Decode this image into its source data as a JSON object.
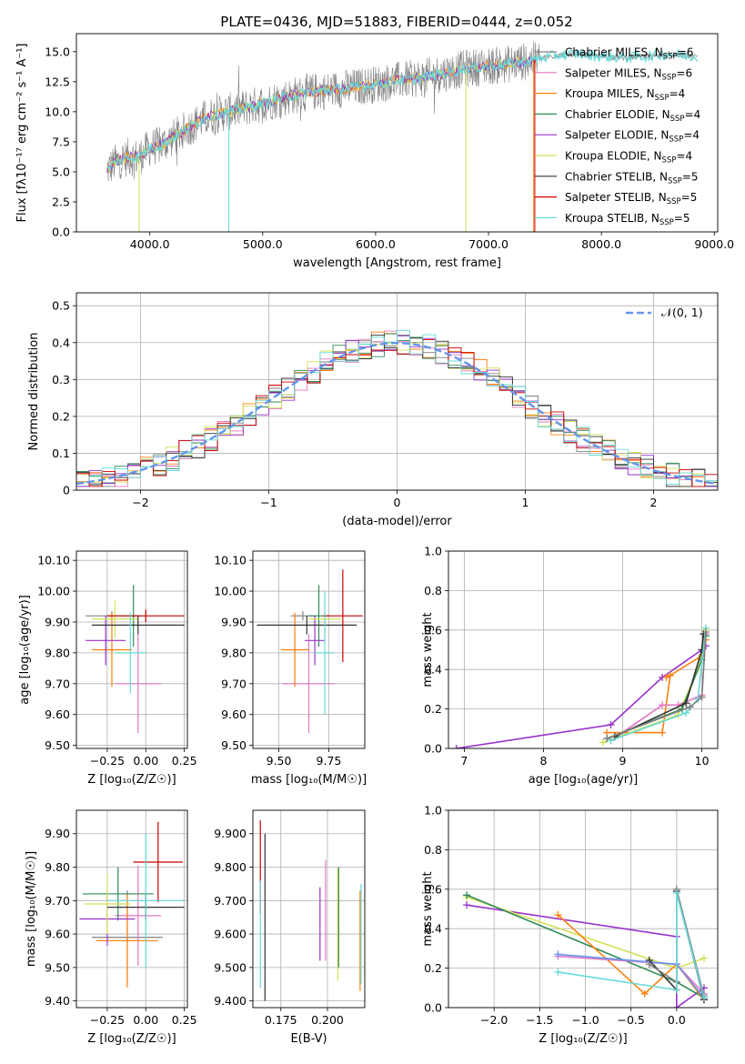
{
  "figure": {
    "title": "PLATE=0436, MJD=51883, FIBERID=0444, z=0.052",
    "colors": {
      "chabrier_miles": "#808080",
      "salpeter_miles": "#e377c2",
      "kroupa_miles": "#ff7f0e",
      "chabrier_elodie": "#2e8b57",
      "salpeter_elodie": "#9932cc",
      "kroupa_elodie": "#d4e157",
      "chabrier_stelib": "#333333",
      "salpeter_stelib": "#cc0000",
      "kroupa_stelib": "#66d9d9",
      "normal_curve": "#6495ed",
      "grid": "#b0b0b0"
    }
  },
  "chart_data": [
    {
      "id": "spectrum",
      "type": "line",
      "xlabel": "wavelength [Angstrom, rest frame]",
      "ylabel": "Flux [fλ10⁻¹⁷ erg cm⁻² s⁻¹ A⁻¹]",
      "xlim": [
        3350,
        9030
      ],
      "ylim": [
        0,
        16.5
      ],
      "xticks": [
        4000,
        5000,
        6000,
        7000,
        8000,
        9000
      ],
      "yticks": [
        0.0,
        2.5,
        5.0,
        7.5,
        10.0,
        12.5,
        15.0
      ],
      "grid": false,
      "legend_position": "right",
      "legend": [
        {
          "label": "Chabrier MILES, N",
          "sub": "SSP",
          "suffix": "=6",
          "color_key": "chabrier_miles"
        },
        {
          "label": "Salpeter MILES, N",
          "sub": "SSP",
          "suffix": "=6",
          "color_key": "salpeter_miles"
        },
        {
          "label": "Kroupa MILES, N",
          "sub": "SSP",
          "suffix": "=4",
          "color_key": "kroupa_miles"
        },
        {
          "label": "Chabrier ELODIE, N",
          "sub": "SSP",
          "suffix": "=4",
          "color_key": "chabrier_elodie"
        },
        {
          "label": "Salpeter ELODIE, N",
          "sub": "SSP",
          "suffix": "=4",
          "color_key": "salpeter_elodie"
        },
        {
          "label": "Kroupa ELODIE, N",
          "sub": "SSP",
          "suffix": "=4",
          "color_key": "kroupa_elodie"
        },
        {
          "label": "Chabrier STELIB, N",
          "sub": "SSP",
          "suffix": "=5",
          "color_key": "chabrier_stelib"
        },
        {
          "label": "Salpeter STELIB, N",
          "sub": "SSP",
          "suffix": "=5",
          "color_key": "salpeter_stelib"
        },
        {
          "label": "Kroupa STELIB, N",
          "sub": "SSP",
          "suffix": "=5",
          "color_key": "kroupa_stelib"
        }
      ],
      "continuum": {
        "wavelength": [
          3600,
          3700,
          3800,
          3900,
          4000,
          4100,
          4200,
          4300,
          4400,
          4500,
          4600,
          4800,
          5000,
          5200,
          5400,
          5600,
          5800,
          6000,
          6200,
          6400,
          6600,
          6800,
          7000,
          7200,
          7400,
          7600,
          7800,
          8000,
          8200,
          8400,
          8600,
          8800
        ],
        "flux": [
          5.0,
          5.8,
          6.2,
          6.2,
          7.0,
          7.2,
          7.8,
          8.4,
          9.0,
          9.5,
          9.8,
          10.2,
          10.7,
          11.2,
          11.6,
          11.8,
          12.0,
          12.3,
          12.6,
          12.8,
          13.2,
          13.6,
          13.8,
          14.0,
          14.3,
          14.7,
          14.8,
          14.6,
          14.5,
          14.6,
          14.8,
          14.6
        ]
      }
    },
    {
      "id": "residuals",
      "type": "line",
      "xlabel": "(data-model)/error",
      "ylabel": "Normed distribution",
      "xlim": [
        -2.5,
        2.5
      ],
      "ylim": [
        0,
        0.535
      ],
      "xticks": [
        -2,
        -1,
        0,
        1,
        2
      ],
      "yticks": [
        0.0,
        0.1,
        0.2,
        0.3,
        0.4,
        0.5
      ],
      "grid": true,
      "legend_position": "top-right",
      "normal_label": "𝒩(0, 1)"
    },
    {
      "id": "age_vs_Z",
      "type": "scatter",
      "xlabel": "Z [log₁₀(Z/Z☉)]",
      "ylabel": "age  [log₁₀(age/yr)]",
      "xlim": [
        -0.45,
        0.27
      ],
      "ylim": [
        9.49,
        10.13
      ],
      "xticks": [
        -0.25,
        0.0,
        0.25
      ],
      "yticks": [
        9.5,
        9.6,
        9.7,
        9.8,
        9.9,
        10.0,
        10.1
      ],
      "grid": true,
      "points": [
        {
          "x": -0.22,
          "y": 9.92,
          "xerr": 0.17,
          "yerr": 0.015,
          "color_key": "chabrier_miles"
        },
        {
          "x": -0.05,
          "y": 9.7,
          "xerr": 0.15,
          "yerr": 0.16,
          "color_key": "salpeter_miles"
        },
        {
          "x": -0.22,
          "y": 9.81,
          "xerr": 0.13,
          "yerr": 0.12,
          "color_key": "kroupa_miles"
        },
        {
          "x": -0.08,
          "y": 9.92,
          "xerr": 0.05,
          "yerr": 0.1,
          "color_key": "chabrier_elodie"
        },
        {
          "x": -0.26,
          "y": 9.84,
          "xerr": 0.13,
          "yerr": 0.08,
          "color_key": "salpeter_elodie"
        },
        {
          "x": -0.2,
          "y": 9.91,
          "xerr": 0.15,
          "yerr": 0.06,
          "color_key": "kroupa_elodie"
        },
        {
          "x": -0.05,
          "y": 9.89,
          "xerr": 0.3,
          "yerr": 0.03,
          "color_key": "chabrier_stelib"
        },
        {
          "x": 0.0,
          "y": 9.92,
          "xerr": 0.25,
          "yerr": 0.02,
          "color_key": "salpeter_stelib"
        },
        {
          "x": -0.1,
          "y": 9.8,
          "xerr": 0.1,
          "yerr": 0.13,
          "color_key": "kroupa_stelib"
        }
      ]
    },
    {
      "id": "age_vs_mass",
      "type": "scatter",
      "xlabel": "mass [log₁₀(M/M☉)]",
      "ylabel": "",
      "xlim": [
        9.37,
        9.93
      ],
      "ylim": [
        9.49,
        10.13
      ],
      "xticks": [
        9.5,
        9.75
      ],
      "yticks": [
        9.5,
        9.6,
        9.7,
        9.8,
        9.9,
        10.0,
        10.1
      ],
      "grid": true,
      "points": [
        {
          "x": 9.62,
          "y": 9.92,
          "xerr": 0.06,
          "yerr": 0.015,
          "color_key": "chabrier_miles"
        },
        {
          "x": 9.65,
          "y": 9.7,
          "xerr": 0.13,
          "yerr": 0.16,
          "color_key": "salpeter_miles"
        },
        {
          "x": 9.58,
          "y": 9.81,
          "xerr": 0.07,
          "yerr": 0.12,
          "color_key": "kroupa_miles"
        },
        {
          "x": 9.7,
          "y": 9.92,
          "xerr": 0.05,
          "yerr": 0.1,
          "color_key": "chabrier_elodie"
        },
        {
          "x": 9.68,
          "y": 9.84,
          "xerr": 0.05,
          "yerr": 0.08,
          "color_key": "salpeter_elodie"
        },
        {
          "x": 9.73,
          "y": 9.91,
          "xerr": 0.08,
          "yerr": 0.06,
          "color_key": "kroupa_elodie"
        },
        {
          "x": 9.64,
          "y": 9.89,
          "xerr": 0.25,
          "yerr": 0.03,
          "color_key": "chabrier_stelib"
        },
        {
          "x": 9.82,
          "y": 9.92,
          "xerr": 0.1,
          "yerr": 0.15,
          "color_key": "salpeter_stelib"
        },
        {
          "x": 9.73,
          "y": 9.8,
          "xerr": 0.05,
          "yerr": 0.2,
          "color_key": "kroupa_stelib"
        }
      ]
    },
    {
      "id": "weight_vs_age",
      "type": "line",
      "xlabel": "age  [log₁₀(age/yr)]",
      "ylabel": "mass weight",
      "xlim": [
        6.8,
        10.2
      ],
      "ylim": [
        0,
        1.0
      ],
      "xticks": [
        7,
        8,
        9,
        10
      ],
      "yticks": [
        0.0,
        0.2,
        0.4,
        0.6,
        0.8,
        1.0
      ],
      "grid": true,
      "series": [
        {
          "color_key": "salpeter_elodie",
          "x": [
            6.9,
            8.85,
            9.5,
            10.0,
            10.05
          ],
          "y": [
            0.0,
            0.12,
            0.36,
            0.5,
            0.52
          ]
        },
        {
          "color_key": "kroupa_miles",
          "x": [
            8.8,
            9.5,
            9.6,
            10.0,
            10.05
          ],
          "y": [
            0.08,
            0.08,
            0.37,
            0.47,
            0.55
          ]
        },
        {
          "color_key": "salpeter_miles",
          "x": [
            8.85,
            9.5,
            9.7,
            10.0,
            10.05
          ],
          "y": [
            0.04,
            0.22,
            0.22,
            0.27,
            0.58
          ]
        },
        {
          "color_key": "kroupa_elodie",
          "x": [
            8.75,
            9.7,
            9.95,
            10.05
          ],
          "y": [
            0.03,
            0.17,
            0.4,
            0.6
          ]
        },
        {
          "color_key": "chabrier_elodie",
          "x": [
            8.8,
            9.75,
            10.0,
            10.05
          ],
          "y": [
            0.05,
            0.2,
            0.45,
            0.57
          ]
        },
        {
          "color_key": "chabrier_stelib",
          "x": [
            8.9,
            9.8,
            10.0,
            10.02
          ],
          "y": [
            0.06,
            0.23,
            0.5,
            0.58
          ]
        },
        {
          "color_key": "kroupa_stelib",
          "x": [
            8.85,
            9.8,
            9.95,
            10.05
          ],
          "y": [
            0.04,
            0.18,
            0.25,
            0.61
          ]
        },
        {
          "color_key": "chabrier_miles",
          "x": [
            8.8,
            9.85,
            10.0,
            10.05
          ],
          "y": [
            0.05,
            0.21,
            0.26,
            0.59
          ]
        },
        {
          "color_key": "kroupa_miles",
          "x": [
            9.55,
            9.6
          ],
          "y": [
            0.36,
            0.37
          ]
        }
      ]
    },
    {
      "id": "mass_vs_Z",
      "type": "scatter",
      "xlabel": "Z [log₁₀(Z/Z☉)]",
      "ylabel": "mass [log₁₀(M/M☉)]",
      "xlim": [
        -0.45,
        0.27
      ],
      "ylim": [
        9.38,
        9.97
      ],
      "xticks": [
        -0.25,
        0.0,
        0.25
      ],
      "yticks": [
        9.4,
        9.5,
        9.6,
        9.7,
        9.8,
        9.9
      ],
      "grid": true,
      "points": [
        {
          "x": -0.12,
          "y": 9.59,
          "xerr": 0.23,
          "yerr": 0.14,
          "color_key": "chabrier_miles"
        },
        {
          "x": -0.05,
          "y": 9.655,
          "xerr": 0.15,
          "yerr": 0.15,
          "color_key": "salpeter_miles"
        },
        {
          "x": -0.12,
          "y": 9.58,
          "xerr": 0.2,
          "yerr": 0.14,
          "color_key": "kroupa_miles"
        },
        {
          "x": -0.18,
          "y": 9.72,
          "xerr": 0.23,
          "yerr": 0.08,
          "color_key": "chabrier_elodie"
        },
        {
          "x": -0.25,
          "y": 9.645,
          "xerr": 0.18,
          "yerr": 0.08,
          "color_key": "salpeter_elodie"
        },
        {
          "x": -0.25,
          "y": 9.69,
          "xerr": 0.15,
          "yerr": 0.09,
          "color_key": "kroupa_elodie"
        },
        {
          "x": 0.0,
          "y": 9.68,
          "xerr": 0.25,
          "yerr": 0.04,
          "color_key": "chabrier_stelib"
        },
        {
          "x": 0.08,
          "y": 9.815,
          "xerr": 0.16,
          "yerr": 0.12,
          "color_key": "salpeter_stelib"
        },
        {
          "x": 0.0,
          "y": 9.7,
          "xerr": 0.25,
          "yerr": 0.2,
          "color_key": "kroupa_stelib"
        }
      ]
    },
    {
      "id": "mass_vs_ebv",
      "type": "scatter",
      "xlabel": "E(B-V)",
      "ylabel": "",
      "xlim": [
        0.16,
        0.22
      ],
      "ylim": [
        9.38,
        9.97
      ],
      "xticks": [
        0.175,
        0.2
      ],
      "yticks": [
        9.4,
        9.5,
        9.6,
        9.7,
        9.8,
        9.9
      ],
      "grid": true,
      "points": [
        {
          "x": 0.1665,
          "y": 9.65,
          "yerr": 0.25,
          "color_key": "chabrier_stelib"
        },
        {
          "x": 0.164,
          "y": 9.8,
          "yerr": 0.14,
          "color_key": "salpeter_stelib"
        },
        {
          "x": 0.164,
          "y": 9.6,
          "yerr": 0.16,
          "color_key": "kroupa_stelib"
        },
        {
          "x": 0.196,
          "y": 9.63,
          "yerr": 0.11,
          "color_key": "salpeter_elodie"
        },
        {
          "x": 0.199,
          "y": 9.67,
          "yerr": 0.15,
          "color_key": "salpeter_miles"
        },
        {
          "x": 0.2055,
          "y": 9.63,
          "yerr": 0.17,
          "color_key": "kroupa_elodie"
        },
        {
          "x": 0.206,
          "y": 9.65,
          "yerr": 0.15,
          "color_key": "chabrier_elodie"
        },
        {
          "x": 0.2175,
          "y": 9.58,
          "yerr": 0.15,
          "color_key": "kroupa_miles"
        },
        {
          "x": 0.218,
          "y": 9.6,
          "yerr": 0.15,
          "color_key": "kroupa_stelib"
        }
      ]
    },
    {
      "id": "weight_vs_Z",
      "type": "line",
      "xlabel": "Z [log₁₀(Z/Z☉)]",
      "ylabel": "mass weight",
      "xlim": [
        -2.5,
        0.45
      ],
      "ylim": [
        0,
        1.0
      ],
      "xticks": [
        -2.0,
        -1.5,
        -1.0,
        -0.5,
        0.0
      ],
      "yticks": [
        0.0,
        0.2,
        0.4,
        0.6,
        0.8,
        1.0
      ],
      "grid": true,
      "series": [
        {
          "color_key": "salpeter_elodie",
          "x": [
            -2.3,
            0.0,
            0.0,
            0.3
          ],
          "y": [
            0.52,
            0.36,
            0.0,
            0.1
          ]
        },
        {
          "color_key": "kroupa_elodie",
          "x": [
            -2.3,
            0.0,
            0.3
          ],
          "y": [
            0.56,
            0.2,
            0.25
          ]
        },
        {
          "color_key": "chabrier_elodie",
          "x": [
            -2.3,
            0.0,
            0.3
          ],
          "y": [
            0.57,
            0.13,
            0.05
          ]
        },
        {
          "color_key": "kroupa_miles",
          "x": [
            -1.3,
            -0.35,
            0.0,
            0.3
          ],
          "y": [
            0.47,
            0.07,
            0.22,
            0.04
          ]
        },
        {
          "color_key": "salpeter_miles",
          "x": [
            -1.3,
            0.0,
            0.3
          ],
          "y": [
            0.26,
            0.22,
            0.07
          ]
        },
        {
          "color_key": "normal_curve",
          "x": [
            -1.3,
            0.0,
            0.3
          ],
          "y": [
            0.27,
            0.22,
            0.05
          ]
        },
        {
          "color_key": "chabrier_stelib",
          "x": [
            -0.3,
            0.0,
            0.0,
            0.3
          ],
          "y": [
            0.24,
            0.09,
            0.59,
            0.04
          ]
        },
        {
          "color_key": "chabrier_miles",
          "x": [
            -0.3,
            0.0,
            0.0,
            0.3
          ],
          "y": [
            0.22,
            0.13,
            0.6,
            0.06
          ]
        },
        {
          "color_key": "kroupa_stelib",
          "x": [
            -1.3,
            0.0,
            0.0,
            0.3
          ],
          "y": [
            0.18,
            0.09,
            0.58,
            0.05
          ]
        }
      ]
    }
  ]
}
